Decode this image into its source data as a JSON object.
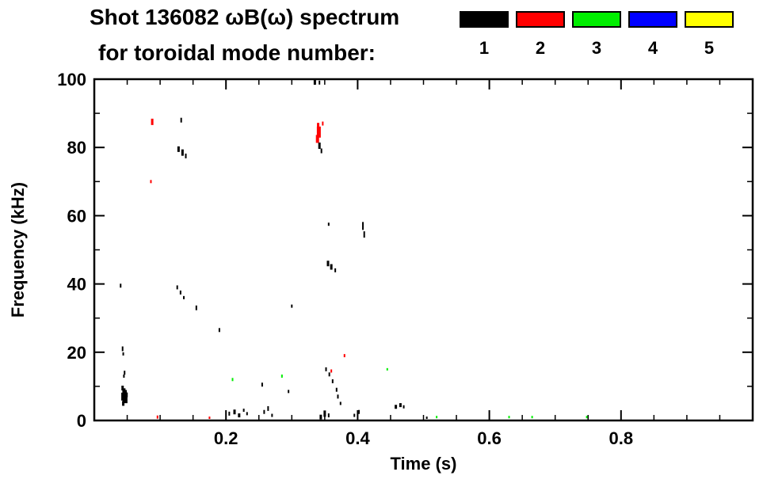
{
  "title_line1": "Shot 136082 ωB(ω) spectrum",
  "title_line2": "for toroidal mode number:",
  "legend": {
    "items": [
      {
        "label": "1",
        "color": "#000000"
      },
      {
        "label": "2",
        "color": "#ff0000"
      },
      {
        "label": "3",
        "color": "#00ee00"
      },
      {
        "label": "4",
        "color": "#0000ff"
      },
      {
        "label": "5",
        "color": "#ffff00"
      }
    ]
  },
  "chart_data": {
    "type": "scatter",
    "title": "Shot 136082 ωB(ω) spectrum for toroidal mode number: 1-5",
    "xlabel": "Time (s)",
    "ylabel": "Frequency (kHz)",
    "xlim": [
      0,
      1.0
    ],
    "ylim": [
      0,
      100
    ],
    "x_major": [
      0.2,
      0.4,
      0.6,
      0.8
    ],
    "x_tick_labels": [
      "0.2",
      "0.4",
      "0.6",
      "0.8"
    ],
    "x_minor_step": 0.05,
    "y_major": [
      0,
      20,
      40,
      60,
      80,
      100
    ],
    "y_tick_labels": [
      "0",
      "20",
      "40",
      "60",
      "80",
      "100"
    ],
    "y_minor_step": 10,
    "grid": false,
    "legend_position": "top-right",
    "series": [
      {
        "name": "1",
        "color": "#000000"
      },
      {
        "name": "2",
        "color": "#ff0000"
      },
      {
        "name": "3",
        "color": "#00ee00"
      },
      {
        "name": "4",
        "color": "#0000ff"
      },
      {
        "name": "5",
        "color": "#ffff00"
      }
    ],
    "points_format": [
      "time_s",
      "freq_kHz",
      "mode_number",
      "mark_height_px",
      "mark_width_px"
    ],
    "points": [
      [
        0.04,
        39.5,
        1,
        5,
        2
      ],
      [
        0.043,
        21.0,
        1,
        6,
        2
      ],
      [
        0.044,
        19.5,
        1,
        4,
        2
      ],
      [
        0.046,
        14.0,
        1,
        5,
        2
      ],
      [
        0.045,
        13.0,
        1,
        4,
        2
      ],
      [
        0.043,
        9.5,
        1,
        6,
        3
      ],
      [
        0.045,
        8.5,
        1,
        8,
        4
      ],
      [
        0.047,
        8.0,
        1,
        8,
        4
      ],
      [
        0.044,
        7.0,
        1,
        10,
        5
      ],
      [
        0.046,
        6.5,
        1,
        10,
        5
      ],
      [
        0.048,
        6.0,
        1,
        8,
        4
      ],
      [
        0.044,
        5.0,
        1,
        6,
        3
      ],
      [
        0.049,
        7.5,
        1,
        6,
        3
      ],
      [
        0.088,
        87.5,
        2,
        8,
        3
      ],
      [
        0.086,
        70.0,
        2,
        4,
        2
      ],
      [
        0.096,
        1.0,
        2,
        4,
        2
      ],
      [
        0.132,
        88.0,
        1,
        6,
        2
      ],
      [
        0.128,
        79.5,
        1,
        7,
        3
      ],
      [
        0.134,
        78.5,
        1,
        8,
        3
      ],
      [
        0.139,
        77.5,
        1,
        6,
        2
      ],
      [
        0.126,
        39.0,
        1,
        5,
        2
      ],
      [
        0.131,
        37.5,
        1,
        5,
        2
      ],
      [
        0.136,
        36.0,
        1,
        4,
        2
      ],
      [
        0.155,
        33.0,
        1,
        6,
        2
      ],
      [
        0.175,
        0.8,
        2,
        3,
        2
      ],
      [
        0.19,
        26.5,
        1,
        5,
        2
      ],
      [
        0.21,
        12.0,
        3,
        4,
        2
      ],
      [
        0.205,
        2.0,
        1,
        5,
        2
      ],
      [
        0.213,
        2.5,
        1,
        6,
        3
      ],
      [
        0.22,
        1.5,
        1,
        5,
        3
      ],
      [
        0.227,
        3.0,
        1,
        4,
        2
      ],
      [
        0.232,
        2.0,
        1,
        4,
        2
      ],
      [
        0.255,
        10.5,
        1,
        5,
        2
      ],
      [
        0.258,
        2.5,
        1,
        5,
        2
      ],
      [
        0.264,
        3.5,
        1,
        6,
        2
      ],
      [
        0.27,
        1.5,
        1,
        4,
        2
      ],
      [
        0.285,
        13.0,
        3,
        4,
        2
      ],
      [
        0.295,
        8.5,
        1,
        4,
        2
      ],
      [
        0.3,
        33.5,
        1,
        4,
        2
      ],
      [
        0.335,
        99.5,
        1,
        6,
        3
      ],
      [
        0.342,
        99.0,
        1,
        5,
        2
      ],
      [
        0.34,
        86.5,
        2,
        6,
        3
      ],
      [
        0.341,
        84.5,
        2,
        14,
        5
      ],
      [
        0.339,
        82.5,
        2,
        10,
        4
      ],
      [
        0.347,
        87.0,
        2,
        5,
        2
      ],
      [
        0.342,
        80.5,
        1,
        8,
        3
      ],
      [
        0.345,
        79.0,
        1,
        6,
        2
      ],
      [
        0.356,
        57.5,
        1,
        4,
        2
      ],
      [
        0.355,
        46.0,
        1,
        7,
        3
      ],
      [
        0.36,
        45.0,
        1,
        7,
        3
      ],
      [
        0.366,
        44.0,
        1,
        5,
        2
      ],
      [
        0.352,
        15.0,
        1,
        5,
        2
      ],
      [
        0.36,
        14.5,
        2,
        4,
        2
      ],
      [
        0.357,
        13.5,
        1,
        5,
        2
      ],
      [
        0.362,
        11.5,
        1,
        5,
        2
      ],
      [
        0.368,
        9.0,
        1,
        5,
        2
      ],
      [
        0.37,
        7.0,
        1,
        5,
        2
      ],
      [
        0.374,
        5.0,
        1,
        4,
        2
      ],
      [
        0.344,
        1.0,
        1,
        6,
        3
      ],
      [
        0.35,
        2.0,
        1,
        8,
        3
      ],
      [
        0.356,
        1.5,
        1,
        5,
        2
      ],
      [
        0.38,
        19.0,
        2,
        4,
        2
      ],
      [
        0.395,
        1.5,
        1,
        4,
        2
      ],
      [
        0.402,
        2.5,
        1,
        5,
        2
      ],
      [
        0.408,
        57.0,
        1,
        10,
        2
      ],
      [
        0.41,
        54.5,
        1,
        8,
        2
      ],
      [
        0.445,
        15.0,
        3,
        3,
        2
      ],
      [
        0.458,
        4.0,
        1,
        5,
        3
      ],
      [
        0.465,
        4.5,
        1,
        5,
        3
      ],
      [
        0.47,
        4.0,
        1,
        4,
        2
      ],
      [
        0.505,
        0.8,
        1,
        3,
        2
      ],
      [
        0.52,
        1.0,
        3,
        3,
        2
      ],
      [
        0.63,
        1.0,
        3,
        3,
        2
      ],
      [
        0.665,
        1.0,
        3,
        3,
        2
      ],
      [
        0.748,
        1.0,
        3,
        3,
        2
      ]
    ]
  }
}
